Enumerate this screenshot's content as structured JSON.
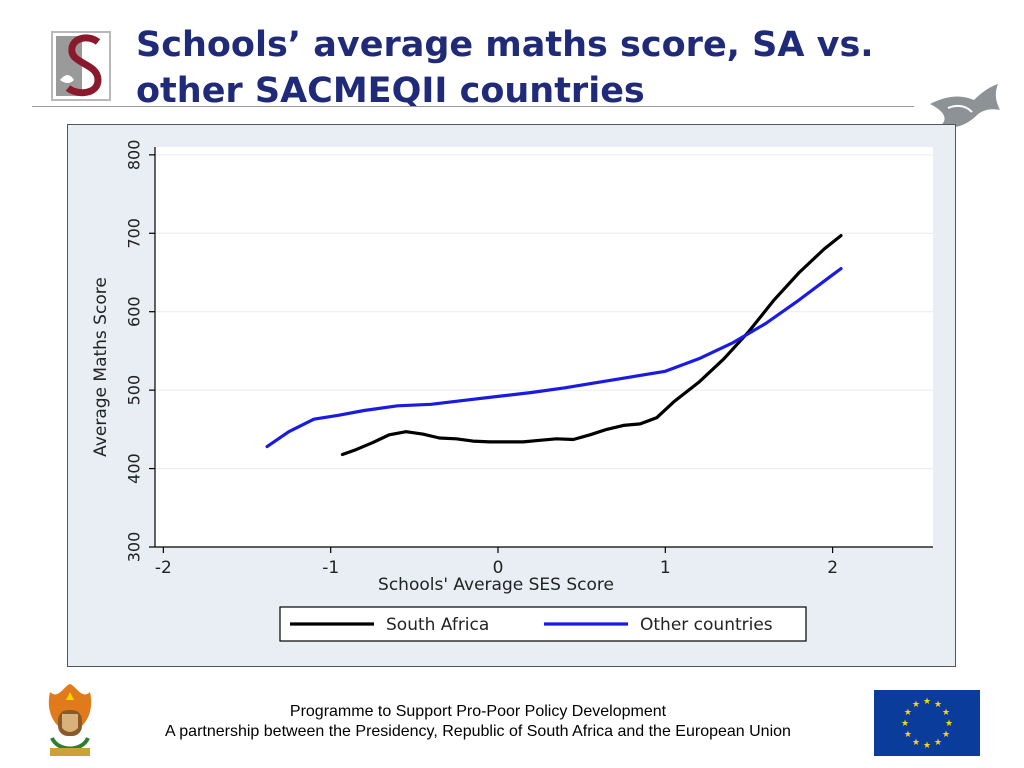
{
  "slide": {
    "title_line1": "Schools’ average maths score, SA vs.",
    "title_line2": "other SACMEQII countries"
  },
  "footer": {
    "line1": "Programme to Support Pro-Poor Policy Development",
    "line2": "A partnership between the Presidency, Republic of South Africa and the European Union"
  },
  "logos": {
    "left_top": "s-crest-logo",
    "right_top": "fish-logo",
    "bottom_left": "coat-of-arms",
    "bottom_right": "eu-flag"
  },
  "colors": {
    "title": "#1f2a78",
    "south_africa": "#000000",
    "other_countries": "#1a1ae6",
    "plot_bg": "#ffffff",
    "chart_bg": "#e8eef3",
    "eu_blue": "#0a3c9c",
    "eu_star": "#ffd700"
  },
  "chart_data": {
    "type": "line",
    "xlabel": "Schools' Average SES Score",
    "ylabel": "Average Maths Score",
    "xlim": [
      -2.05,
      2.6
    ],
    "ylim": [
      300,
      810
    ],
    "xticks": [
      -2,
      -1,
      0,
      1,
      2
    ],
    "xtick_labels": [
      "-2",
      "-1",
      "0",
      "1",
      "2"
    ],
    "yticks": [
      300,
      400,
      500,
      600,
      700,
      800
    ],
    "ytick_labels": [
      "300",
      "400",
      "500",
      "600",
      "700",
      "800"
    ],
    "grid": "horizontal",
    "legend_position": "bottom",
    "series": [
      {
        "name": "South Africa",
        "x": [
          -0.93,
          -0.85,
          -0.75,
          -0.65,
          -0.55,
          -0.45,
          -0.35,
          -0.25,
          -0.15,
          -0.05,
          0.05,
          0.15,
          0.25,
          0.35,
          0.45,
          0.55,
          0.65,
          0.75,
          0.85,
          0.95,
          1.05,
          1.2,
          1.35,
          1.5,
          1.65,
          1.8,
          1.95,
          2.05
        ],
        "y": [
          418,
          424,
          433,
          443,
          447,
          444,
          439,
          438,
          435,
          434,
          434,
          434,
          436,
          438,
          437,
          443,
          450,
          455,
          457,
          465,
          485,
          510,
          540,
          575,
          615,
          650,
          680,
          697
        ]
      },
      {
        "name": "Other countries",
        "x": [
          -1.38,
          -1.25,
          -1.1,
          -0.95,
          -0.8,
          -0.6,
          -0.4,
          -0.2,
          0,
          0.2,
          0.4,
          0.6,
          0.8,
          1.0,
          1.2,
          1.4,
          1.6,
          1.8,
          2.0,
          2.05
        ],
        "y": [
          428,
          447,
          463,
          468,
          474,
          480,
          482,
          487,
          492,
          497,
          503,
          510,
          517,
          524,
          540,
          560,
          585,
          615,
          647,
          655
        ]
      }
    ]
  }
}
